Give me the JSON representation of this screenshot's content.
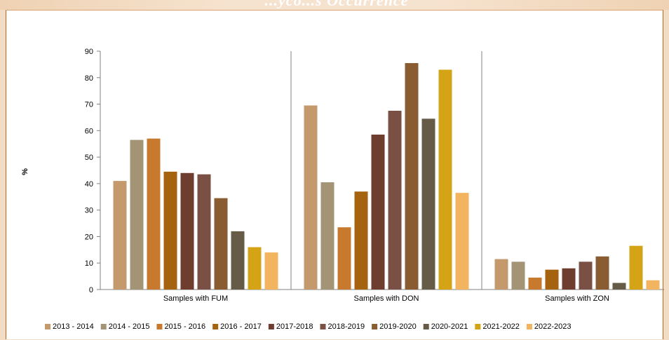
{
  "header": {
    "title_fragment": "...yco...s Occurrence"
  },
  "chart_data": {
    "type": "bar",
    "categories": [
      "Samples with FUM",
      "Samples with DON",
      "Samples with ZON"
    ],
    "ylabel": "%",
    "ylim": [
      0,
      90
    ],
    "yticks": [
      0,
      10,
      20,
      30,
      40,
      50,
      60,
      70,
      80,
      90
    ],
    "grid": false,
    "legend_position": "bottom",
    "series": [
      {
        "name": "2013 - 2014",
        "color": "#c49a6c",
        "values": [
          41,
          69.5,
          11.5
        ]
      },
      {
        "name": "2014 - 2015",
        "color": "#a39476",
        "values": [
          56.5,
          40.5,
          10.5
        ]
      },
      {
        "name": "2015 - 2016",
        "color": "#c77a2e",
        "values": [
          57,
          23.5,
          4.5
        ]
      },
      {
        "name": "2016 - 2017",
        "color": "#a6630f",
        "values": [
          44.5,
          37,
          7.5
        ]
      },
      {
        "name": "2017-2018",
        "color": "#6e3d2f",
        "values": [
          44,
          58.5,
          8
        ]
      },
      {
        "name": "2018-2019",
        "color": "#7a5044",
        "values": [
          43.5,
          67.5,
          10.5
        ]
      },
      {
        "name": "2019-2020",
        "color": "#8a5c32",
        "values": [
          34.5,
          85.5,
          12.5
        ]
      },
      {
        "name": "2020-2021",
        "color": "#665b47",
        "values": [
          22,
          64.5,
          2.5
        ]
      },
      {
        "name": "2021-2022",
        "color": "#d4a316",
        "values": [
          16,
          83,
          16.5
        ]
      },
      {
        "name": "2022-2023",
        "color": "#f3b45f",
        "values": [
          14,
          36.5,
          3.5
        ]
      }
    ]
  }
}
